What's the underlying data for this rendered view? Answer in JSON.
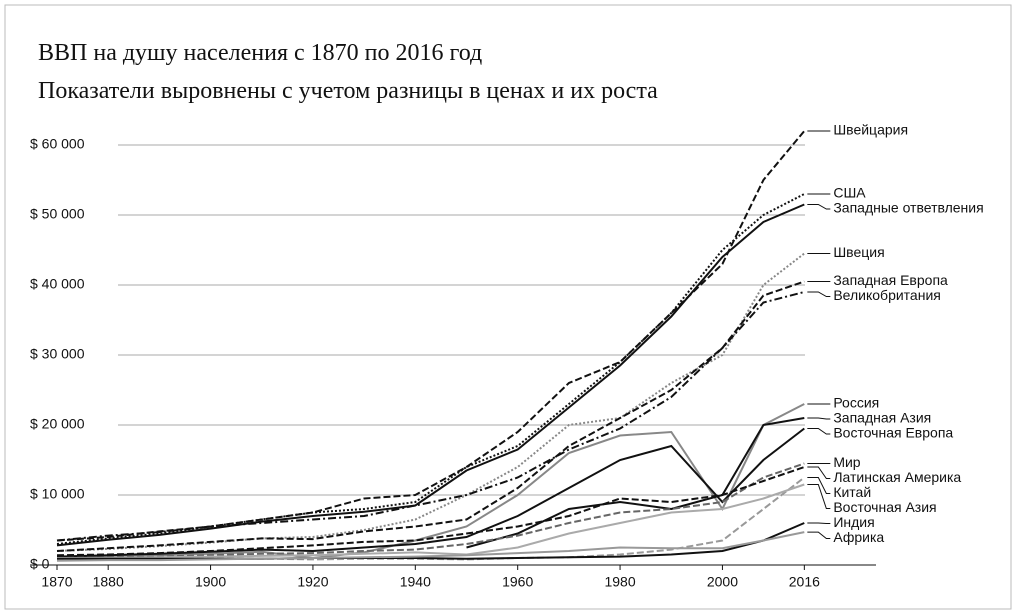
{
  "chart_data": {
    "type": "line",
    "title": "ВВП на душу населения с 1870 по 2016 год",
    "subtitle": "Показатели выровнены с учетом разницы в ценах и их роста",
    "x": [
      1870,
      1880,
      1890,
      1900,
      1910,
      1920,
      1930,
      1940,
      1950,
      1960,
      1970,
      1980,
      1990,
      2000,
      2008,
      2016
    ],
    "xlim": [
      1870,
      2030
    ],
    "xticks": [
      1870,
      1880,
      1900,
      1920,
      1940,
      1960,
      1980,
      2000,
      2016
    ],
    "ylim": [
      0,
      60000
    ],
    "yticks": [
      {
        "value": 0,
        "label": "$ 0"
      },
      {
        "value": 10000,
        "label": "$ 10 000"
      },
      {
        "value": 20000,
        "label": "$ 20 000"
      },
      {
        "value": 30000,
        "label": "$ 30 000"
      },
      {
        "value": 40000,
        "label": "$ 40 000"
      },
      {
        "value": 50000,
        "label": "$ 50 000"
      },
      {
        "value": 60000,
        "label": "$ 60 000"
      }
    ],
    "grid": true,
    "series": [
      {
        "name": "Швейцария",
        "color": "#111111",
        "style": "dashed",
        "values": [
          3500,
          4000,
          4800,
          5500,
          6500,
          7500,
          9500,
          10000,
          14000,
          19000,
          26000,
          29000,
          36000,
          43000,
          55000,
          62000
        ]
      },
      {
        "name": "США",
        "color": "#111111",
        "style": "dotted",
        "values": [
          3000,
          3800,
          4500,
          5500,
          6500,
          7500,
          8000,
          9000,
          14000,
          17000,
          23000,
          29000,
          36000,
          45000,
          50000,
          53000
        ]
      },
      {
        "name": "Западные ответвления",
        "color": "#111111",
        "style": "solid",
        "values": [
          2800,
          3600,
          4300,
          5200,
          6200,
          7000,
          7600,
          8500,
          13500,
          16500,
          22500,
          28500,
          35500,
          44000,
          49000,
          51500
        ]
      },
      {
        "name": "Швеция",
        "color": "#888888",
        "style": "dotted",
        "values": [
          2000,
          2300,
          2700,
          3200,
          3800,
          4000,
          5000,
          6500,
          10000,
          14000,
          20000,
          21000,
          26000,
          30000,
          40000,
          44500
        ]
      },
      {
        "name": "Западная Европа",
        "color": "#111111",
        "style": "dashed",
        "values": [
          2000,
          2400,
          2800,
          3300,
          3800,
          3700,
          4800,
          5500,
          6500,
          11000,
          17000,
          21000,
          25000,
          31000,
          38500,
          40500
        ]
      },
      {
        "name": "Великобритания",
        "color": "#111111",
        "style": "dashdot",
        "values": [
          3500,
          4200,
          4700,
          5500,
          6000,
          6500,
          7000,
          8500,
          10000,
          12500,
          16500,
          19500,
          24000,
          31000,
          37500,
          39000
        ]
      },
      {
        "name": "Россия",
        "color": "#888888",
        "style": "solid",
        "values": [
          1200,
          1300,
          1400,
          1600,
          1900,
          1000,
          1800,
          3500,
          5500,
          10000,
          16000,
          18500,
          19000,
          8000,
          20000,
          23000
        ]
      },
      {
        "name": "Западная Азия",
        "color": "#111111",
        "style": "solid",
        "values": [
          null,
          null,
          null,
          null,
          null,
          null,
          null,
          null,
          2500,
          4500,
          8000,
          9000,
          8000,
          10000,
          20000,
          21000
        ]
      },
      {
        "name": "Восточная Европа",
        "color": "#111111",
        "style": "solid",
        "values": [
          1200,
          1400,
          1600,
          1900,
          2200,
          2000,
          2500,
          3000,
          4000,
          7000,
          11000,
          15000,
          17000,
          9000,
          15000,
          19500
        ]
      },
      {
        "name": "Мир",
        "color": "#666666",
        "style": "dashed",
        "values": [
          1000,
          1100,
          1200,
          1400,
          1600,
          1700,
          2000,
          2200,
          3000,
          4200,
          6000,
          7500,
          8000,
          9000,
          12500,
          14500
        ]
      },
      {
        "name": "Латинская Америка",
        "color": "#111111",
        "style": "dashed",
        "values": [
          1400,
          1500,
          1700,
          2000,
          2400,
          2800,
          3300,
          3500,
          4500,
          5500,
          7000,
          9500,
          9000,
          10000,
          12000,
          14000
        ]
      },
      {
        "name": "Китай",
        "color": "#999999",
        "style": "dashed",
        "values": [
          900,
          900,
          900,
          900,
          900,
          800,
          900,
          900,
          800,
          1000,
          1100,
          1500,
          2200,
          3500,
          8000,
          12500
        ]
      },
      {
        "name": "Восточная Азия",
        "color": "#aaaaaa",
        "style": "solid",
        "values": [
          1000,
          1000,
          1100,
          1200,
          1300,
          1400,
          1600,
          1800,
          1500,
          2500,
          4500,
          6000,
          7500,
          8000,
          9500,
          11500
        ]
      },
      {
        "name": "Индия",
        "color": "#111111",
        "style": "solid",
        "values": [
          900,
          900,
          900,
          900,
          900,
          1000,
          1000,
          1000,
          900,
          1000,
          1100,
          1200,
          1500,
          2000,
          3500,
          6000
        ]
      },
      {
        "name": "Африка",
        "color": "#999999",
        "style": "solid",
        "values": [
          600,
          700,
          700,
          800,
          900,
          1000,
          1100,
          1200,
          1400,
          1700,
          2000,
          2500,
          2400,
          2400,
          3500,
          4700
        ]
      }
    ]
  }
}
